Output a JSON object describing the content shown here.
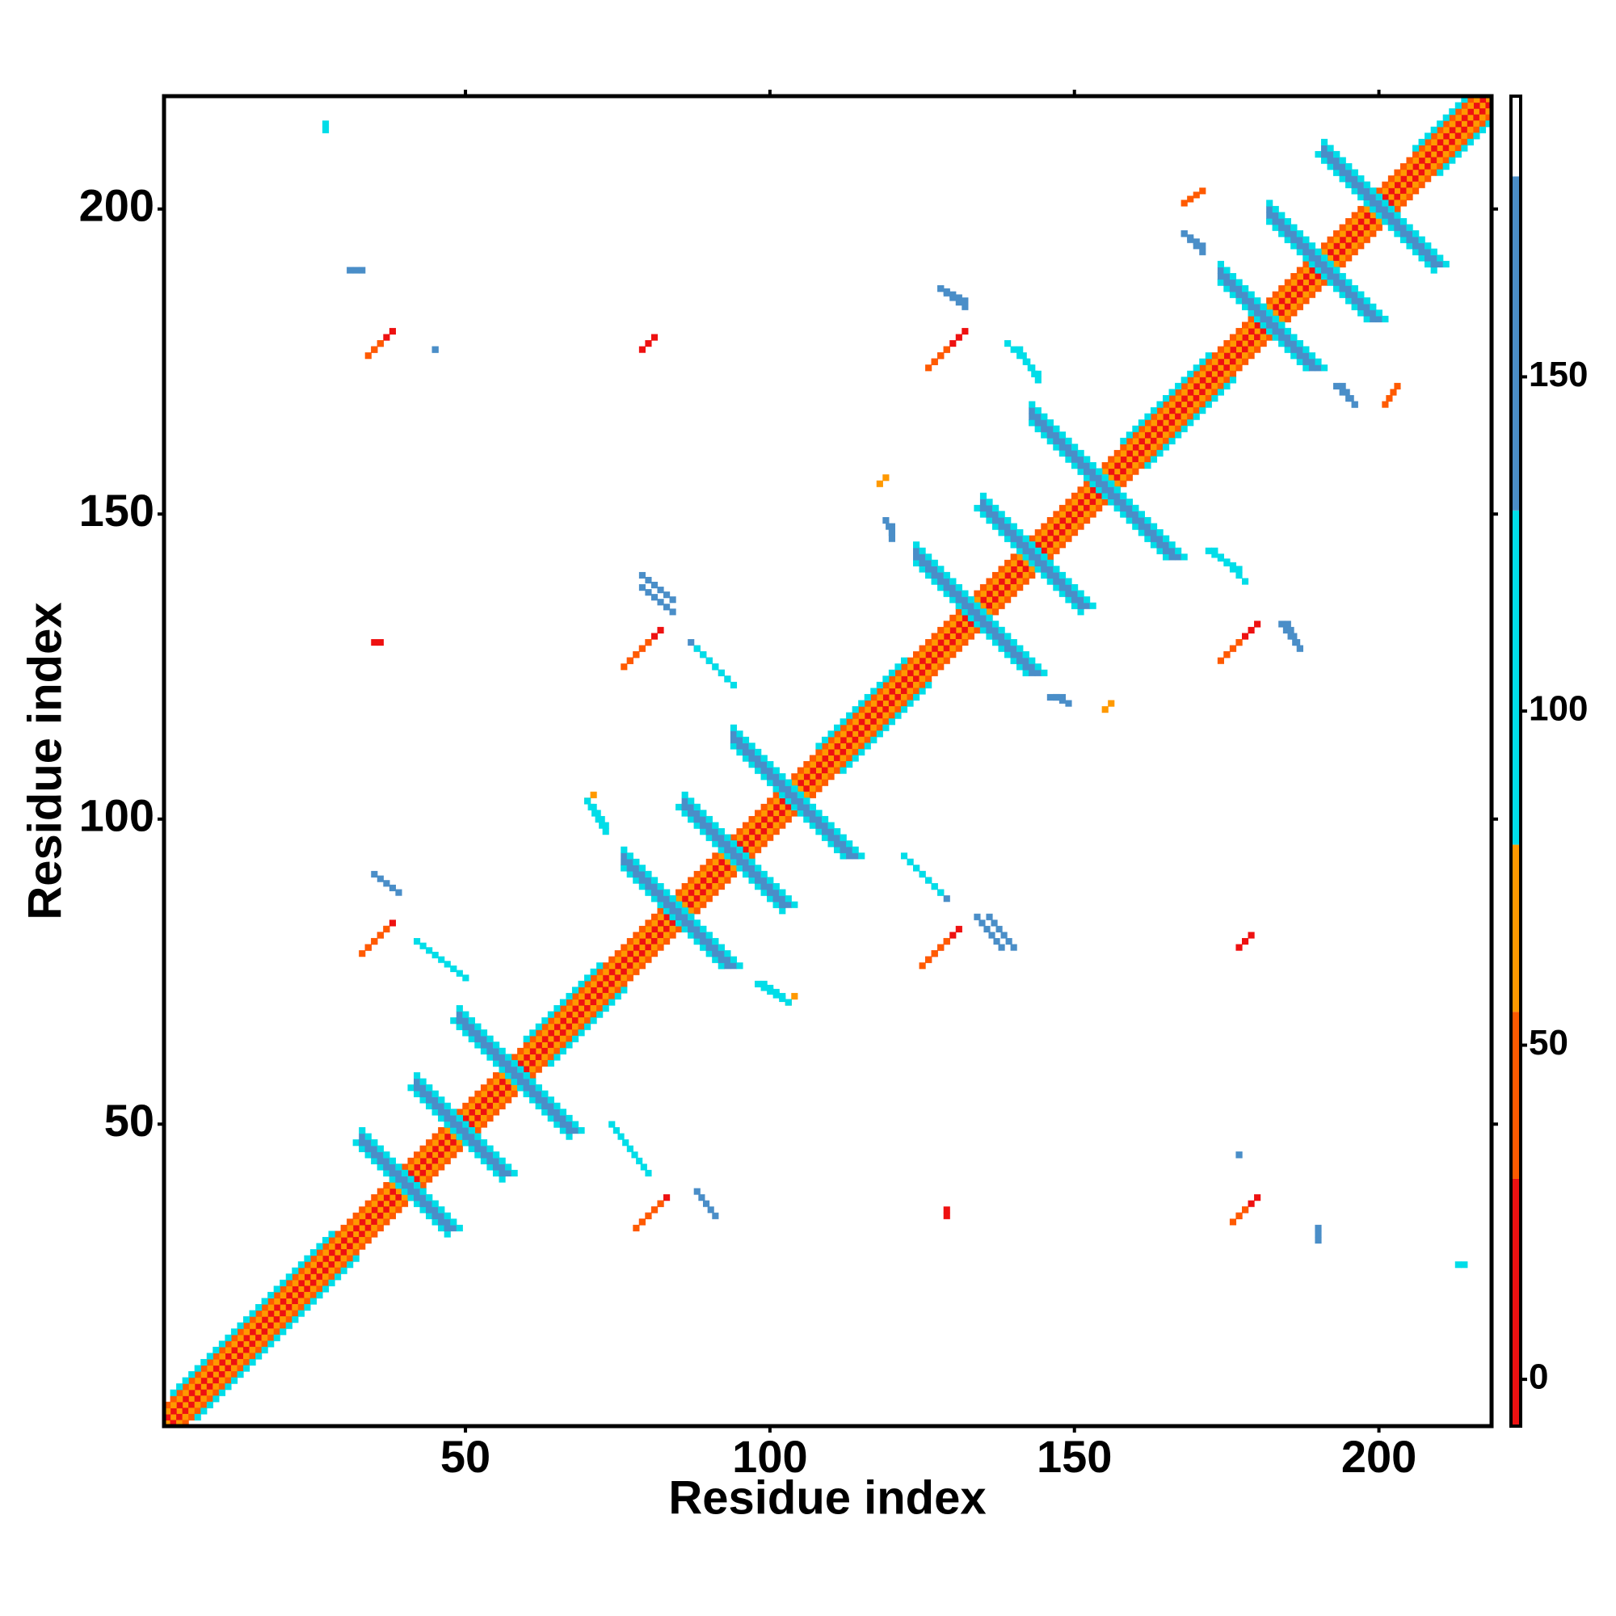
{
  "chart_data": {
    "type": "heatmap",
    "xlabel": "Residue index",
    "ylabel": "Residue index",
    "xlim": [
      0.5,
      218.5
    ],
    "ylim": [
      0.5,
      218.5
    ],
    "xticks": [
      50,
      100,
      150,
      200
    ],
    "yticks": [
      50,
      100,
      150,
      200
    ],
    "symmetric": true,
    "segments": {
      "x": [
        [
          1,
          218
        ],
        [
          1,
          217
        ],
        [
          1,
          216
        ],
        [
          1,
          215
        ],
        [
          2,
          28
        ],
        [
          60,
          72
        ],
        [
          108,
          122
        ],
        [
          158,
          172
        ],
        [
          206,
          214
        ],
        [
          33,
          47
        ],
        [
          33,
          47
        ],
        [
          33,
          47
        ],
        [
          33,
          47
        ],
        [
          42,
          56
        ],
        [
          42,
          56
        ],
        [
          42,
          56
        ],
        [
          42,
          56
        ],
        [
          49,
          67
        ],
        [
          49,
          67
        ],
        [
          49,
          67
        ],
        [
          49,
          67
        ],
        [
          76,
          92
        ],
        [
          76,
          92
        ],
        [
          76,
          92
        ],
        [
          76,
          92
        ],
        [
          86,
          102
        ],
        [
          86,
          102
        ],
        [
          86,
          102
        ],
        [
          86,
          102
        ],
        [
          94,
          112
        ],
        [
          94,
          112
        ],
        [
          94,
          112
        ],
        [
          94,
          112
        ],
        [
          124,
          142
        ],
        [
          124,
          142
        ],
        [
          124,
          142
        ],
        [
          124,
          142
        ],
        [
          135,
          151
        ],
        [
          135,
          151
        ],
        [
          135,
          151
        ],
        [
          135,
          151
        ],
        [
          143,
          165
        ],
        [
          143,
          165
        ],
        [
          143,
          165
        ],
        [
          143,
          165
        ],
        [
          174,
          188
        ],
        [
          174,
          188
        ],
        [
          174,
          188
        ],
        [
          174,
          188
        ],
        [
          182,
          198
        ],
        [
          182,
          198
        ],
        [
          182,
          198
        ],
        [
          182,
          198
        ],
        [
          191,
          209
        ],
        [
          191,
          209
        ],
        [
          191,
          209
        ],
        [
          191,
          209
        ],
        [
          34,
          38
        ],
        [
          33,
          37
        ],
        [
          35,
          38
        ],
        [
          34,
          36
        ],
        [
          77,
          82
        ],
        [
          76,
          80
        ],
        [
          127,
          132
        ],
        [
          126,
          129
        ],
        [
          79,
          81
        ],
        [
          35,
          36
        ],
        [
          70,
          71
        ],
        [
          118,
          119
        ],
        [
          168,
          171
        ],
        [
          27,
          27
        ],
        [
          31,
          33
        ],
        [
          45,
          45
        ],
        [
          87,
          93
        ],
        [
          88,
          94
        ],
        [
          79,
          84
        ],
        [
          42,
          50
        ],
        [
          35,
          39
        ],
        [
          71,
          73
        ],
        [
          134,
          138
        ],
        [
          146,
          148
        ],
        [
          119,
          120
        ],
        [
          128,
          132
        ],
        [
          139,
          144
        ],
        [
          168,
          171
        ],
        [
          194,
          196
        ],
        [
          185,
          187
        ],
        [
          172,
          177
        ],
        [
          98,
          103
        ]
      ],
      "y": [
        [
          1,
          218
        ],
        [
          2,
          218
        ],
        [
          3,
          218
        ],
        [
          4,
          218
        ],
        [
          6,
          32
        ],
        [
          64,
          76
        ],
        [
          112,
          126
        ],
        [
          162,
          176
        ],
        [
          210,
          218
        ],
        [
          46,
          32
        ],
        [
          47,
          33
        ],
        [
          48,
          34
        ],
        [
          49,
          35
        ],
        [
          55,
          41
        ],
        [
          56,
          42
        ],
        [
          57,
          43
        ],
        [
          58,
          44
        ],
        [
          66,
          48
        ],
        [
          67,
          49
        ],
        [
          68,
          50
        ],
        [
          69,
          51
        ],
        [
          92,
          76
        ],
        [
          93,
          77
        ],
        [
          94,
          78
        ],
        [
          95,
          79
        ],
        [
          101,
          85
        ],
        [
          102,
          86
        ],
        [
          103,
          87
        ],
        [
          104,
          88
        ],
        [
          112,
          94
        ],
        [
          113,
          95
        ],
        [
          114,
          96
        ],
        [
          115,
          97
        ],
        [
          142,
          124
        ],
        [
          143,
          125
        ],
        [
          144,
          126
        ],
        [
          145,
          127
        ],
        [
          150,
          134
        ],
        [
          151,
          135
        ],
        [
          152,
          136
        ],
        [
          153,
          137
        ],
        [
          165,
          143
        ],
        [
          166,
          144
        ],
        [
          167,
          145
        ],
        [
          168,
          146
        ],
        [
          188,
          174
        ],
        [
          189,
          175
        ],
        [
          190,
          176
        ],
        [
          191,
          177
        ],
        [
          198,
          182
        ],
        [
          199,
          183
        ],
        [
          200,
          184
        ],
        [
          201,
          185
        ],
        [
          208,
          190
        ],
        [
          209,
          191
        ],
        [
          210,
          192
        ],
        [
          211,
          193
        ],
        [
          79,
          83
        ],
        [
          78,
          82
        ],
        [
          177,
          180
        ],
        [
          176,
          178
        ],
        [
          126,
          131
        ],
        [
          125,
          129
        ],
        [
          175,
          180
        ],
        [
          174,
          177
        ],
        [
          177,
          179
        ],
        [
          129,
          129
        ],
        [
          103,
          104
        ],
        [
          155,
          156
        ],
        [
          201,
          203
        ],
        [
          213,
          214
        ],
        [
          190,
          190
        ],
        [
          177,
          177
        ],
        [
          129,
          123
        ],
        [
          128,
          122
        ],
        [
          140,
          136
        ],
        [
          80,
          74
        ],
        [
          91,
          88
        ],
        [
          102,
          99
        ],
        [
          84,
          79
        ],
        [
          120,
          120
        ],
        [
          149,
          147
        ],
        [
          187,
          184
        ],
        [
          178,
          173
        ],
        [
          196,
          193
        ],
        [
          171,
          168
        ],
        [
          132,
          128
        ],
        [
          144,
          141
        ],
        [
          73,
          70
        ]
      ],
      "values": [
        60,
        5,
        65,
        45,
        95,
        95,
        95,
        95,
        95,
        100,
        160,
        160,
        100,
        100,
        160,
        160,
        100,
        100,
        160,
        160,
        100,
        100,
        160,
        160,
        100,
        100,
        160,
        160,
        100,
        100,
        160,
        160,
        100,
        100,
        160,
        160,
        100,
        100,
        160,
        160,
        100,
        100,
        160,
        160,
        100,
        100,
        160,
        160,
        100,
        100,
        160,
        160,
        100,
        100,
        160,
        160,
        100,
        5,
        40,
        5,
        40,
        5,
        40,
        5,
        45,
        5,
        5,
        60,
        60,
        50,
        100,
        160,
        160,
        160,
        100,
        160,
        100,
        160,
        100,
        160,
        160,
        160,
        160,
        100,
        160,
        160,
        160,
        100,
        100
      ]
    },
    "colorbar": {
      "lim": [
        -7,
        192
      ],
      "ticks": [
        0,
        50,
        100,
        150
      ],
      "bins": [
        -7,
        30,
        55,
        80,
        130,
        180,
        192
      ],
      "colors": [
        "#ee1111",
        "#ff5a00",
        "#ff9900",
        "#00dde8",
        "#4a8ec8",
        "#ffffff"
      ]
    }
  }
}
